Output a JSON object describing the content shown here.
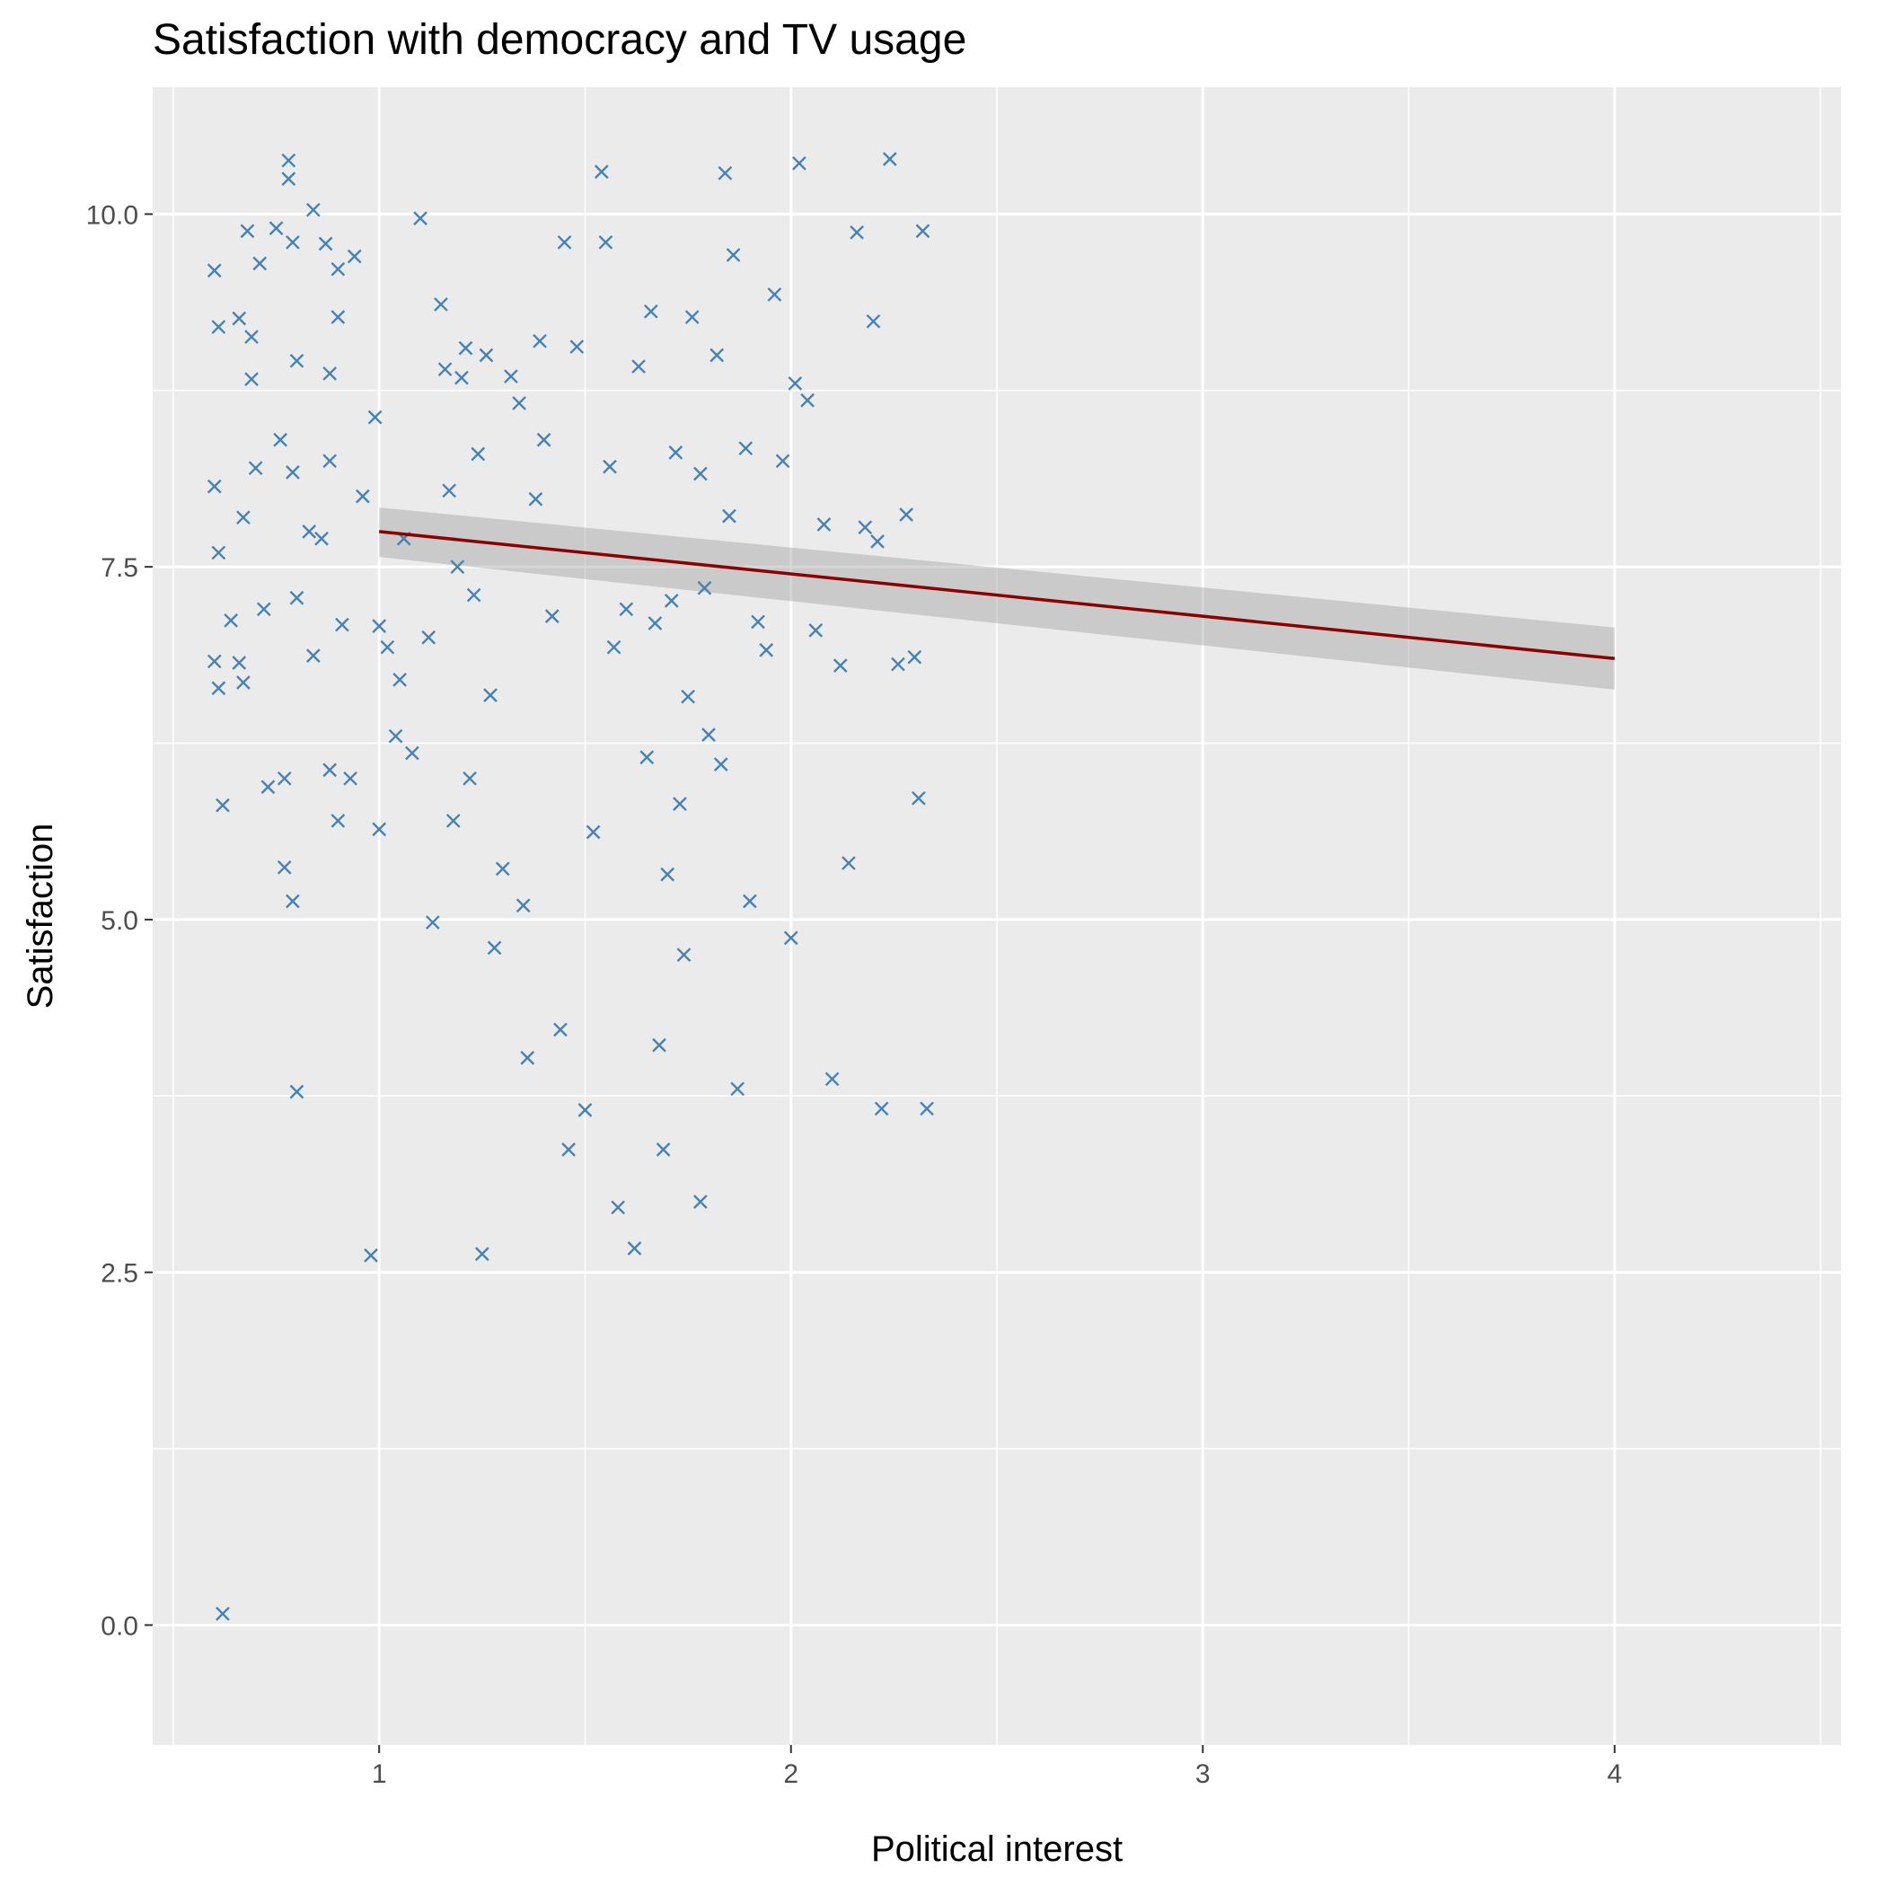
{
  "chart_data": {
    "type": "scatter",
    "title": "Satisfaction with democracy and TV usage",
    "xlabel": "Political interest",
    "ylabel": "Satisfaction",
    "xlim": [
      0.45,
      4.55
    ],
    "ylim": [
      -0.85,
      10.9
    ],
    "x_ticks": [
      1,
      2,
      3,
      4
    ],
    "x_tick_labels": [
      "1",
      "2",
      "3",
      "4"
    ],
    "y_ticks": [
      0,
      2.5,
      5,
      7.5,
      10
    ],
    "y_tick_labels": [
      "0.0",
      "2.5",
      "5.0",
      "7.5",
      "10.0"
    ],
    "grid": true,
    "colors": {
      "panel": "#ebebeb",
      "grid": "#ffffff",
      "points": "#4682b4",
      "fit_line": "#8b0000",
      "ribbon": "#999999"
    },
    "fit": {
      "method": "lm",
      "x": [
        1,
        4
      ],
      "y": [
        7.75,
        6.85
      ],
      "ci_lower": [
        7.57,
        6.63
      ],
      "ci_upper": [
        7.92,
        7.07
      ]
    },
    "points": [
      [
        0.62,
        0.08
      ],
      [
        0.6,
        9.6
      ],
      [
        0.61,
        9.2
      ],
      [
        0.6,
        8.07
      ],
      [
        0.61,
        7.6
      ],
      [
        0.6,
        6.83
      ],
      [
        0.61,
        6.64
      ],
      [
        0.62,
        5.81
      ],
      [
        0.64,
        7.12
      ],
      [
        0.66,
        9.26
      ],
      [
        0.66,
        6.82
      ],
      [
        0.67,
        7.85
      ],
      [
        0.67,
        6.68
      ],
      [
        0.68,
        9.88
      ],
      [
        0.69,
        9.13
      ],
      [
        0.69,
        8.83
      ],
      [
        0.7,
        8.2
      ],
      [
        0.71,
        9.65
      ],
      [
        0.72,
        7.2
      ],
      [
        0.73,
        5.94
      ],
      [
        0.75,
        9.9
      ],
      [
        0.76,
        8.4
      ],
      [
        0.77,
        6.0
      ],
      [
        0.77,
        5.37
      ],
      [
        0.78,
        10.38
      ],
      [
        0.78,
        10.25
      ],
      [
        0.79,
        9.8
      ],
      [
        0.79,
        8.17
      ],
      [
        0.79,
        5.13
      ],
      [
        0.8,
        3.78
      ],
      [
        0.8,
        8.96
      ],
      [
        0.8,
        7.28
      ],
      [
        0.83,
        7.75
      ],
      [
        0.84,
        10.03
      ],
      [
        0.84,
        6.87
      ],
      [
        0.86,
        7.7
      ],
      [
        0.87,
        9.79
      ],
      [
        0.88,
        8.87
      ],
      [
        0.88,
        8.25
      ],
      [
        0.88,
        6.06
      ],
      [
        0.9,
        9.61
      ],
      [
        0.9,
        9.27
      ],
      [
        0.9,
        5.7
      ],
      [
        0.91,
        7.09
      ],
      [
        0.93,
        6.0
      ],
      [
        0.94,
        9.7
      ],
      [
        0.96,
        8.0
      ],
      [
        0.98,
        2.62
      ],
      [
        0.99,
        8.56
      ],
      [
        1.0,
        7.08
      ],
      [
        1.0,
        5.64
      ],
      [
        1.02,
        6.93
      ],
      [
        1.04,
        6.3
      ],
      [
        1.05,
        6.7
      ],
      [
        1.06,
        7.7
      ],
      [
        1.08,
        6.18
      ],
      [
        1.1,
        9.97
      ],
      [
        1.12,
        7.0
      ],
      [
        1.13,
        4.98
      ],
      [
        1.15,
        9.36
      ],
      [
        1.16,
        8.9
      ],
      [
        1.17,
        8.04
      ],
      [
        1.18,
        5.7
      ],
      [
        1.19,
        7.5
      ],
      [
        1.2,
        8.84
      ],
      [
        1.21,
        9.05
      ],
      [
        1.22,
        6.0
      ],
      [
        1.23,
        7.3
      ],
      [
        1.24,
        8.3
      ],
      [
        1.25,
        2.63
      ],
      [
        1.26,
        9.0
      ],
      [
        1.27,
        6.59
      ],
      [
        1.28,
        4.8
      ],
      [
        1.3,
        5.36
      ],
      [
        1.32,
        8.85
      ],
      [
        1.34,
        8.66
      ],
      [
        1.35,
        5.1
      ],
      [
        1.36,
        4.02
      ],
      [
        1.38,
        7.98
      ],
      [
        1.39,
        9.1
      ],
      [
        1.4,
        8.4
      ],
      [
        1.42,
        7.15
      ],
      [
        1.44,
        4.22
      ],
      [
        1.45,
        9.8
      ],
      [
        1.46,
        3.37
      ],
      [
        1.48,
        9.06
      ],
      [
        1.5,
        3.65
      ],
      [
        1.52,
        5.62
      ],
      [
        1.54,
        10.3
      ],
      [
        1.55,
        9.8
      ],
      [
        1.56,
        8.21
      ],
      [
        1.57,
        6.93
      ],
      [
        1.58,
        2.96
      ],
      [
        1.6,
        7.2
      ],
      [
        1.62,
        2.67
      ],
      [
        1.63,
        8.92
      ],
      [
        1.65,
        6.15
      ],
      [
        1.66,
        9.31
      ],
      [
        1.67,
        7.1
      ],
      [
        1.68,
        4.11
      ],
      [
        1.69,
        3.37
      ],
      [
        1.7,
        5.32
      ],
      [
        1.71,
        7.26
      ],
      [
        1.72,
        8.31
      ],
      [
        1.73,
        5.82
      ],
      [
        1.74,
        4.75
      ],
      [
        1.75,
        6.58
      ],
      [
        1.76,
        9.27
      ],
      [
        1.78,
        3.0
      ],
      [
        1.78,
        8.16
      ],
      [
        1.79,
        7.35
      ],
      [
        1.8,
        6.31
      ],
      [
        1.82,
        9.0
      ],
      [
        1.83,
        6.1
      ],
      [
        1.84,
        10.29
      ],
      [
        1.85,
        7.86
      ],
      [
        1.86,
        9.71
      ],
      [
        1.87,
        3.8
      ],
      [
        1.89,
        8.34
      ],
      [
        1.9,
        5.13
      ],
      [
        1.92,
        7.11
      ],
      [
        1.94,
        6.91
      ],
      [
        1.96,
        9.43
      ],
      [
        1.98,
        8.25
      ],
      [
        2.0,
        4.87
      ],
      [
        2.01,
        8.8
      ],
      [
        2.02,
        10.36
      ],
      [
        2.04,
        8.68
      ],
      [
        2.06,
        7.05
      ],
      [
        2.08,
        7.8
      ],
      [
        2.1,
        3.87
      ],
      [
        2.12,
        6.8
      ],
      [
        2.14,
        5.4
      ],
      [
        2.16,
        9.87
      ],
      [
        2.18,
        7.78
      ],
      [
        2.2,
        9.24
      ],
      [
        2.21,
        7.68
      ],
      [
        2.22,
        3.66
      ],
      [
        2.24,
        10.39
      ],
      [
        2.26,
        6.81
      ],
      [
        2.28,
        7.87
      ],
      [
        2.3,
        6.86
      ],
      [
        2.31,
        5.86
      ],
      [
        2.32,
        9.88
      ],
      [
        2.33,
        3.66
      ]
    ]
  }
}
